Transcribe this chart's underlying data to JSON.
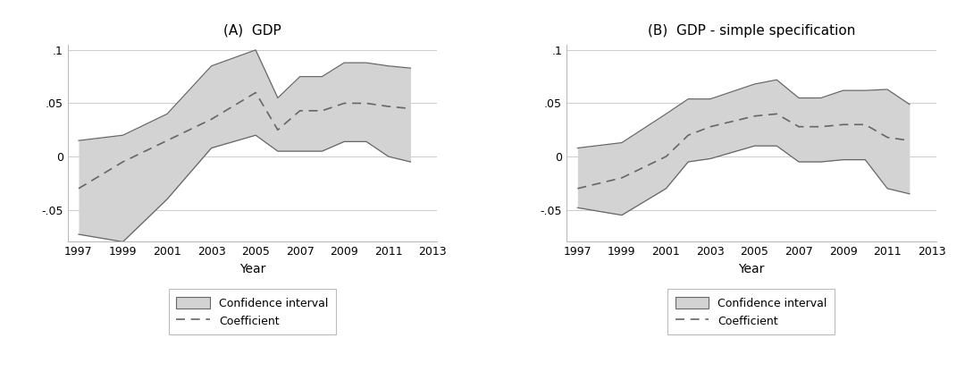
{
  "panel_a": {
    "title": "(A)  GDP",
    "years": [
      1997,
      1999,
      2001,
      2003,
      2005,
      2006,
      2007,
      2008,
      2009,
      2010,
      2011,
      2012
    ],
    "coeff": [
      -0.03,
      -0.005,
      0.015,
      0.035,
      0.06,
      0.025,
      0.043,
      0.043,
      0.05,
      0.05,
      0.047,
      0.045
    ],
    "ci_upper": [
      0.015,
      0.02,
      0.04,
      0.085,
      0.1,
      0.055,
      0.075,
      0.075,
      0.088,
      0.088,
      0.085,
      0.083
    ],
    "ci_lower": [
      -0.073,
      -0.08,
      -0.04,
      0.008,
      0.02,
      0.005,
      0.005,
      0.005,
      0.014,
      0.014,
      0.0,
      -0.005
    ],
    "ylim": [
      -0.08,
      0.105
    ],
    "yticks": [
      -0.05,
      0.0,
      0.05,
      0.1
    ],
    "yticklabels": [
      "-.05",
      "0",
      ".05",
      ".1"
    ],
    "xticks": [
      1997,
      1999,
      2001,
      2003,
      2005,
      2007,
      2009,
      2011,
      2013
    ],
    "xlabel": "Year"
  },
  "panel_b": {
    "title": "(B)  GDP - simple specification",
    "years": [
      1997,
      1999,
      2001,
      2002,
      2003,
      2005,
      2006,
      2007,
      2008,
      2009,
      2010,
      2011,
      2012
    ],
    "coeff": [
      -0.03,
      -0.02,
      0.0,
      0.02,
      0.028,
      0.038,
      0.04,
      0.028,
      0.028,
      0.03,
      0.03,
      0.018,
      0.015
    ],
    "ci_upper": [
      0.008,
      0.013,
      0.04,
      0.054,
      0.054,
      0.068,
      0.072,
      0.055,
      0.055,
      0.062,
      0.062,
      0.063,
      0.049
    ],
    "ci_lower": [
      -0.048,
      -0.055,
      -0.03,
      -0.005,
      -0.002,
      0.01,
      0.01,
      -0.005,
      -0.005,
      -0.003,
      -0.003,
      -0.03,
      -0.035
    ],
    "ylim": [
      -0.08,
      0.105
    ],
    "yticks": [
      -0.05,
      0.0,
      0.05,
      0.1
    ],
    "yticklabels": [
      "-.05",
      "0",
      ".05",
      ".1"
    ],
    "xticks": [
      1997,
      1999,
      2001,
      2003,
      2005,
      2007,
      2009,
      2011,
      2013
    ],
    "xlabel": "Year"
  },
  "fill_color": "#d3d3d3",
  "fill_alpha": 1.0,
  "line_color": "#666666",
  "bg_color": "#ffffff",
  "grid_color": "#cccccc",
  "legend_labels": [
    "Confidence interval",
    "Coefficient"
  ],
  "figure_bg": "#ffffff"
}
